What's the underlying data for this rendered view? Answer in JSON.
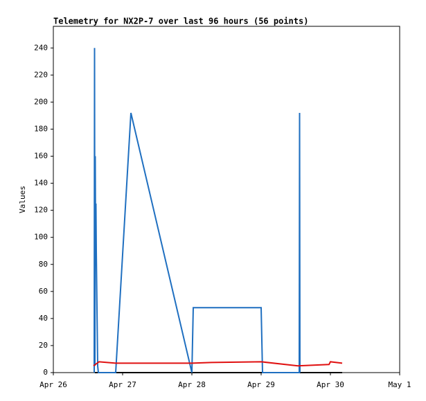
{
  "chart_data": {
    "type": "line",
    "title": "Telemetry for NX2P-7 over last 96 hours (56 points)",
    "ylabel": "Values",
    "xlim": [
      0,
      5
    ],
    "xticks": [
      {
        "value": 0,
        "label": "Apr 26"
      },
      {
        "value": 1,
        "label": "Apr 27"
      },
      {
        "value": 2,
        "label": "Apr 28"
      },
      {
        "value": 3,
        "label": "Apr 29"
      },
      {
        "value": 4,
        "label": "Apr 30"
      },
      {
        "value": 5,
        "label": "May 1"
      }
    ],
    "ylim": [
      0,
      256
    ],
    "yticks": [
      0,
      20,
      40,
      60,
      80,
      100,
      120,
      140,
      160,
      180,
      200,
      220,
      240
    ],
    "series": [
      {
        "color": "#000000",
        "x": [
          0.6,
          4.17
        ],
        "values": [
          0,
          0
        ]
      },
      {
        "color": "#1f6fc0",
        "x": [
          0.59,
          0.595,
          0.6,
          0.605,
          0.61,
          0.615,
          0.62,
          0.64,
          0.65,
          0.9,
          1.12,
          2.0,
          2.02,
          3.0,
          3.02,
          3.55,
          3.555,
          3.56
        ],
        "values": [
          0,
          240,
          5,
          160,
          90,
          125,
          90,
          5,
          0,
          0,
          192,
          0,
          48,
          48,
          0,
          0,
          192,
          0
        ]
      },
      {
        "color": "#e01010",
        "x": [
          0.58,
          0.66,
          0.9,
          2.0,
          2.28,
          3.0,
          3.53,
          3.98,
          4.0,
          4.17
        ],
        "values": [
          5,
          8,
          7,
          7,
          7.5,
          8,
          5,
          6,
          8,
          7
        ]
      }
    ]
  }
}
